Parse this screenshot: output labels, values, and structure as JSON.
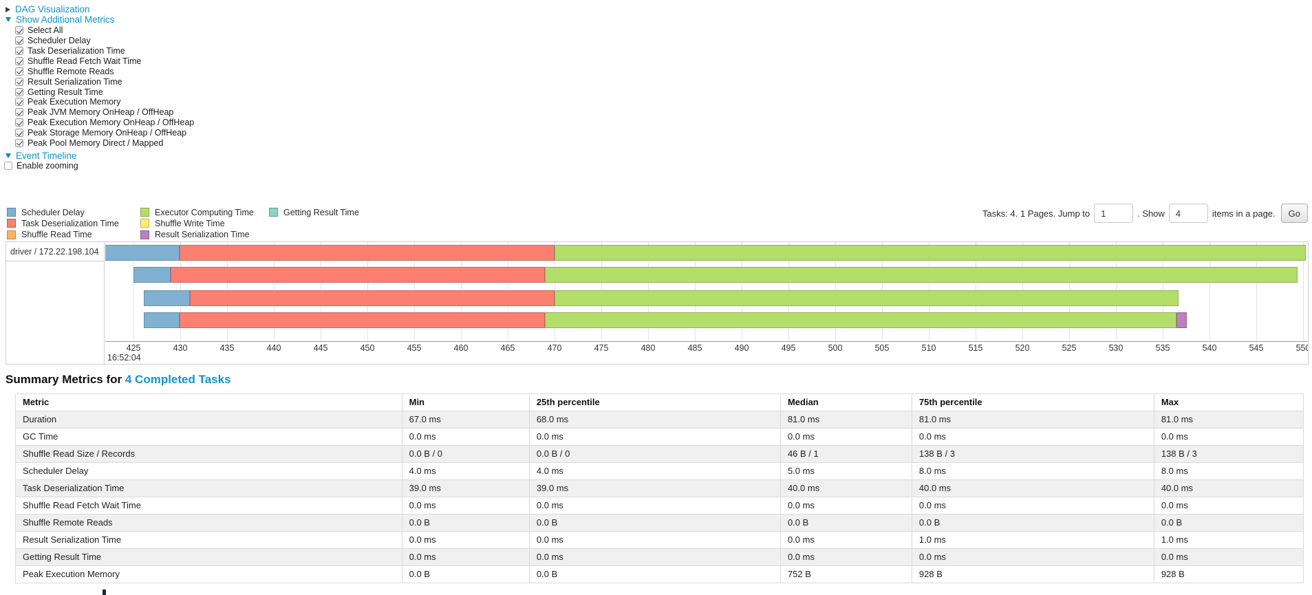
{
  "panels": {
    "dag_link": "DAG Visualization",
    "metrics_link": "Show Additional Metrics",
    "timeline_link": "Event Timeline",
    "enable_zooming_label": "Enable zooming",
    "metric_items": [
      {
        "label": "Select All",
        "checked": true
      },
      {
        "label": "Scheduler Delay",
        "checked": true
      },
      {
        "label": "Task Deserialization Time",
        "checked": true
      },
      {
        "label": "Shuffle Read Fetch Wait Time",
        "checked": true
      },
      {
        "label": "Shuffle Remote Reads",
        "checked": true
      },
      {
        "label": "Result Serialization Time",
        "checked": true
      },
      {
        "label": "Getting Result Time",
        "checked": true
      },
      {
        "label": "Peak Execution Memory",
        "checked": true
      },
      {
        "label": "Peak JVM Memory OnHeap / OffHeap",
        "checked": true
      },
      {
        "label": "Peak Execution Memory OnHeap / OffHeap",
        "checked": true
      },
      {
        "label": "Peak Storage Memory OnHeap / OffHeap",
        "checked": true
      },
      {
        "label": "Peak Pool Memory Direct / Mapped",
        "checked": true
      }
    ]
  },
  "pagination": {
    "tasks_text": "Tasks: 4. 1 Pages. Jump to",
    "jump_value": "1",
    "show_text": ". Show",
    "show_value": "4",
    "items_text": "items in a page.",
    "go_label": "Go"
  },
  "legend": {
    "columns": [
      [
        {
          "label": "Scheduler Delay",
          "color": "#80B1D3"
        },
        {
          "label": "Task Deserialization Time",
          "color": "#FB8072"
        },
        {
          "label": "Shuffle Read Time",
          "color": "#FDB462"
        }
      ],
      [
        {
          "label": "Executor Computing Time",
          "color": "#B3DE69"
        },
        {
          "label": "Shuffle Write Time",
          "color": "#FFED6F"
        },
        {
          "label": "Result Serialization Time",
          "color": "#BC80BD"
        }
      ],
      [
        {
          "label": "Getting Result Time",
          "color": "#8DD3C7"
        }
      ]
    ]
  },
  "timeline": {
    "row_label": "driver / 172.22.198.104",
    "time_major_label": "16:52:04",
    "axis_unit": "ms within second 16:52:04",
    "axis_ticks": [
      425,
      430,
      435,
      440,
      445,
      450,
      455,
      460,
      465,
      470,
      475,
      480,
      485,
      490,
      495,
      500,
      505,
      510,
      515,
      520,
      525,
      530,
      535,
      540,
      545,
      550
    ],
    "colors": {
      "scheduler_delay": "#80B1D3",
      "task_deserialization": "#FB8072",
      "shuffle_read": "#FDB462",
      "executor_computing": "#B3DE69",
      "shuffle_write": "#FFED6F",
      "result_serialization": "#BC80BD",
      "getting_result": "#8DD3C7"
    },
    "rows": [
      {
        "segments": [
          {
            "type": "scheduler_delay",
            "start": 421.9,
            "end": 429.9
          },
          {
            "type": "task_deserialization",
            "start": 429.9,
            "end": 470.0
          },
          {
            "type": "executor_computing",
            "start": 470.0,
            "end": 550.3
          }
        ]
      },
      {
        "segments": [
          {
            "type": "scheduler_delay",
            "start": 425.0,
            "end": 429.0
          },
          {
            "type": "task_deserialization",
            "start": 429.0,
            "end": 469.0
          },
          {
            "type": "executor_computing",
            "start": 469.0,
            "end": 549.4
          }
        ]
      },
      {
        "segments": [
          {
            "type": "scheduler_delay",
            "start": 426.1,
            "end": 431.0
          },
          {
            "type": "task_deserialization",
            "start": 431.0,
            "end": 470.0
          },
          {
            "type": "executor_computing",
            "start": 470.0,
            "end": 536.7
          }
        ]
      },
      {
        "segments": [
          {
            "type": "scheduler_delay",
            "start": 426.1,
            "end": 429.9
          },
          {
            "type": "task_deserialization",
            "start": 429.9,
            "end": 469.0
          },
          {
            "type": "executor_computing",
            "start": 469.0,
            "end": 536.5
          },
          {
            "type": "result_serialization",
            "start": 536.5,
            "end": 537.6
          }
        ]
      }
    ]
  },
  "summary": {
    "title_prefix": "Summary Metrics for",
    "title_link": "4 Completed Tasks",
    "columns": [
      "Metric",
      "Min",
      "25th percentile",
      "Median",
      "75th percentile",
      "Max"
    ],
    "rows": [
      {
        "metric": "Duration",
        "values": [
          "67.0 ms",
          "68.0 ms",
          "81.0 ms",
          "81.0 ms",
          "81.0 ms"
        ]
      },
      {
        "metric": "GC Time",
        "values": [
          "0.0 ms",
          "0.0 ms",
          "0.0 ms",
          "0.0 ms",
          "0.0 ms"
        ]
      },
      {
        "metric": "Shuffle Read Size / Records",
        "values": [
          "0.0 B / 0",
          "0.0 B / 0",
          "46 B / 1",
          "138 B / 3",
          "138 B / 3"
        ]
      },
      {
        "metric": "Scheduler Delay",
        "values": [
          "4.0 ms",
          "4.0 ms",
          "5.0 ms",
          "8.0 ms",
          "8.0 ms"
        ]
      },
      {
        "metric": "Task Deserialization Time",
        "values": [
          "39.0 ms",
          "39.0 ms",
          "40.0 ms",
          "40.0 ms",
          "40.0 ms"
        ]
      },
      {
        "metric": "Shuffle Read Fetch Wait Time",
        "values": [
          "0.0 ms",
          "0.0 ms",
          "0.0 ms",
          "0.0 ms",
          "0.0 ms"
        ]
      },
      {
        "metric": "Shuffle Remote Reads",
        "values": [
          "0.0 B",
          "0.0 B",
          "0.0 B",
          "0.0 B",
          "0.0 B"
        ]
      },
      {
        "metric": "Result Serialization Time",
        "values": [
          "0.0 ms",
          "0.0 ms",
          "0.0 ms",
          "1.0 ms",
          "1.0 ms"
        ]
      },
      {
        "metric": "Getting Result Time",
        "values": [
          "0.0 ms",
          "0.0 ms",
          "0.0 ms",
          "0.0 ms",
          "0.0 ms"
        ]
      },
      {
        "metric": "Peak Execution Memory",
        "values": [
          "0.0 B",
          "0.0 B",
          "752 B",
          "928 B",
          "928 B"
        ]
      }
    ]
  }
}
